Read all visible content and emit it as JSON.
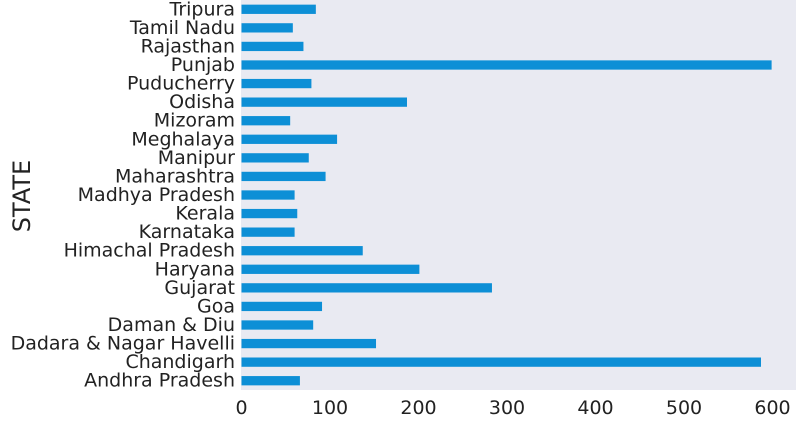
{
  "chart_data": {
    "type": "bar",
    "orientation": "horizontal",
    "ylabel": "STATE",
    "xlabel": "",
    "categories": [
      "Andhra Pradesh",
      "Chandigarh",
      "Dadara & Nagar Havelli",
      "Daman & Diu",
      "Goa",
      "Gujarat",
      "Haryana",
      "Himachal Pradesh",
      "Karnataka",
      "Kerala",
      "Madhya Pradesh",
      "Maharashtra",
      "Manipur",
      "Meghalaya",
      "Mizoram",
      "Odisha",
      "Puducherry",
      "Punjab",
      "Rajasthan",
      "Tamil Nadu",
      "Tripura"
    ],
    "values": [
      66,
      587,
      152,
      81,
      91,
      283,
      201,
      137,
      60,
      63,
      60,
      95,
      76,
      108,
      55,
      187,
      79,
      599,
      70,
      58,
      84
    ],
    "xlim": [
      0,
      625
    ],
    "xticks": [
      0,
      100,
      200,
      300,
      400,
      500,
      600
    ],
    "grid": false,
    "legend": "none",
    "colors": {
      "bar": "#0d8fd6",
      "plot_background": "#e9eaf2",
      "text": "#222222"
    }
  }
}
